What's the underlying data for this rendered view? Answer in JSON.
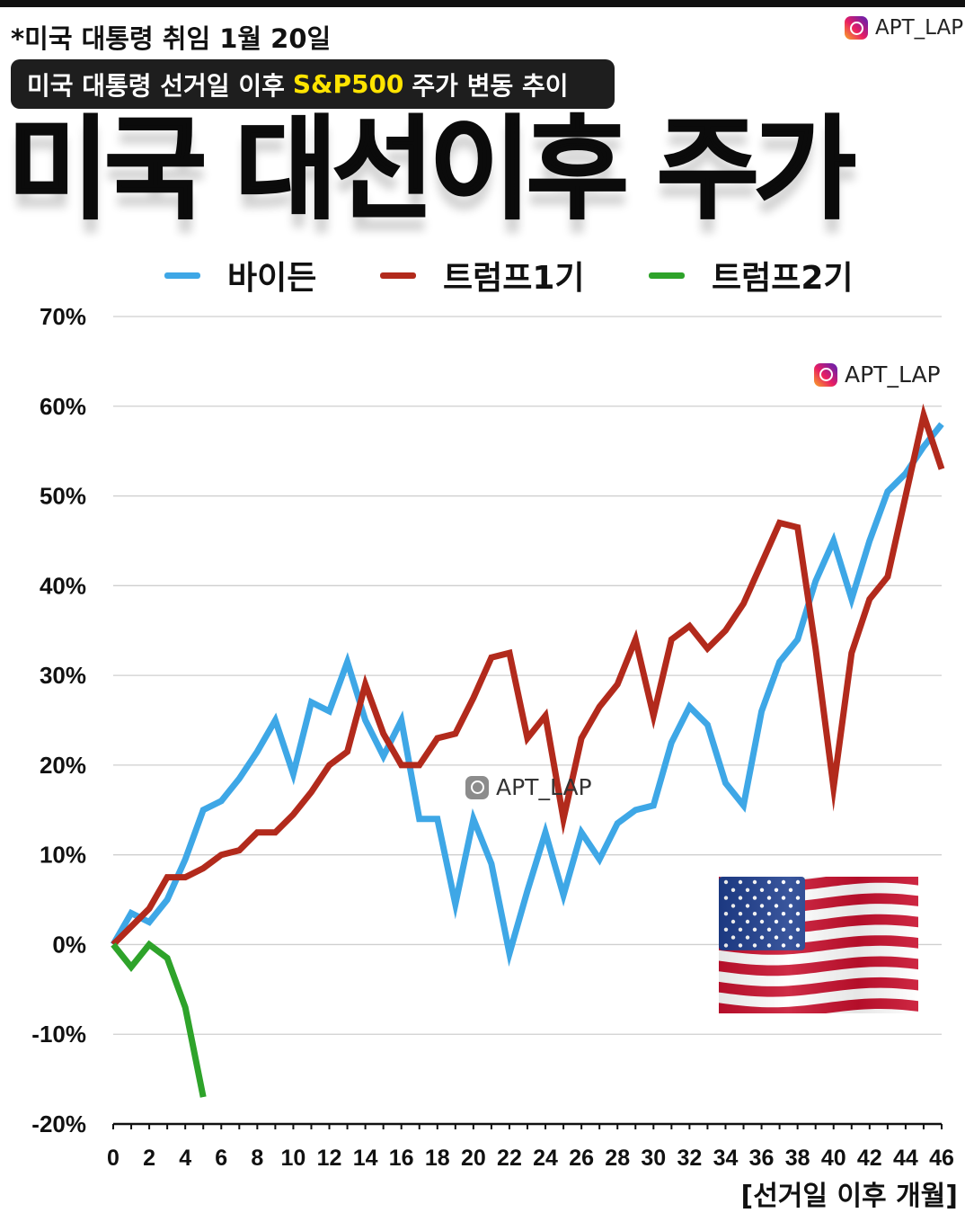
{
  "header": {
    "note": "*미국 대통령 취임 1월 20일",
    "brand": "APT_LAP",
    "banner_before": "미국 대통령 선거일 이후",
    "banner_highlight": "S&P500",
    "banner_after": "주가 변동 추이",
    "headline": "미국 대선이후 주가"
  },
  "watermarks": [
    "APT_LAP",
    "APT_LAP"
  ],
  "chart_data": {
    "type": "line",
    "xlabel": "[선거일 이후 개월]",
    "ylabel": "",
    "xlim": [
      0,
      46
    ],
    "ylim": [
      -20,
      70
    ],
    "x_ticks": [
      0,
      2,
      4,
      6,
      8,
      10,
      12,
      14,
      16,
      18,
      20,
      22,
      24,
      26,
      28,
      30,
      32,
      34,
      36,
      38,
      40,
      42,
      44,
      46
    ],
    "y_ticks": [
      -20,
      -10,
      0,
      10,
      20,
      30,
      40,
      50,
      60,
      70
    ],
    "y_tick_labels": [
      "-20%",
      "-10%",
      "0%",
      "10%",
      "20%",
      "30%",
      "40%",
      "50%",
      "60%",
      "70%"
    ],
    "grid": true,
    "legend_position": "top",
    "series": [
      {
        "name": "바이든",
        "color": "#3ea7e6",
        "x": [
          0,
          1,
          2,
          3,
          4,
          5,
          6,
          7,
          8,
          9,
          10,
          11,
          12,
          13,
          14,
          15,
          16,
          17,
          18,
          19,
          20,
          21,
          22,
          23,
          24,
          25,
          26,
          27,
          28,
          29,
          30,
          31,
          32,
          33,
          34,
          35,
          36,
          37,
          38,
          39,
          40,
          41,
          42,
          43,
          44,
          45,
          46
        ],
        "values": [
          0,
          3.5,
          2.5,
          5,
          9.5,
          15,
          16,
          18.5,
          21.5,
          25,
          19,
          27,
          26,
          31.5,
          25,
          21,
          25,
          14,
          14,
          4.5,
          14,
          9,
          -1,
          6,
          12.5,
          5.5,
          12.5,
          9.5,
          13.5,
          15,
          15.5,
          22.5,
          26.5,
          24.5,
          18,
          15.5,
          26,
          31.5,
          34,
          40.5,
          45,
          38.5,
          45,
          50.5,
          52.5,
          55.5,
          58
        ]
      },
      {
        "name": "트럼프1기",
        "color": "#b22a1c",
        "x": [
          0,
          1,
          2,
          3,
          4,
          5,
          6,
          7,
          8,
          9,
          10,
          11,
          12,
          13,
          14,
          15,
          16,
          17,
          18,
          19,
          20,
          21,
          22,
          23,
          24,
          25,
          26,
          27,
          28,
          29,
          30,
          31,
          32,
          33,
          34,
          35,
          36,
          37,
          38,
          39,
          40,
          41,
          42,
          43,
          44,
          45,
          46
        ],
        "values": [
          0,
          2,
          4,
          7.5,
          7.5,
          8.5,
          10,
          10.5,
          12.5,
          12.5,
          14.5,
          17,
          20,
          21.5,
          29,
          23.5,
          20,
          20,
          23,
          23.5,
          27.5,
          32,
          32.5,
          23,
          25.5,
          14,
          23,
          26.5,
          29,
          34,
          25.5,
          34,
          35.5,
          33,
          35,
          38,
          42.5,
          47,
          46.5,
          33,
          17.5,
          32.5,
          38.5,
          41,
          50,
          59,
          53
        ]
      },
      {
        "name": "트럼프2기",
        "color": "#2ea32a",
        "x": [
          0,
          1,
          2,
          3,
          4,
          5
        ],
        "values": [
          0,
          -2.5,
          0,
          -1.5,
          -7,
          -17
        ]
      }
    ]
  }
}
